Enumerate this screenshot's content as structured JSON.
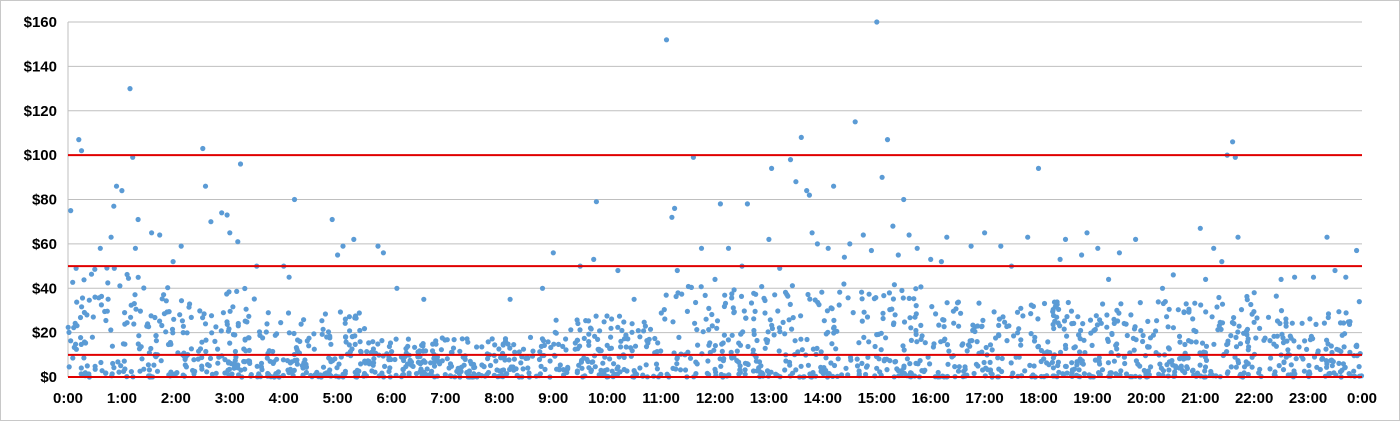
{
  "chart_data": {
    "type": "scatter",
    "title": "",
    "xlabel": "",
    "ylabel": "",
    "xlim": [
      0,
      24
    ],
    "ylim": [
      0,
      160
    ],
    "grid": true,
    "legend": "none",
    "x_tick_labels": [
      "0:00",
      "1:00",
      "2:00",
      "3:00",
      "4:00",
      "5:00",
      "6:00",
      "7:00",
      "8:00",
      "9:00",
      "10:00",
      "11:00",
      "12:00",
      "13:00",
      "14:00",
      "15:00",
      "16:00",
      "17:00",
      "18:00",
      "19:00",
      "20:00",
      "21:00",
      "22:00",
      "23:00",
      "0:00"
    ],
    "y_ticks": [
      0,
      20,
      40,
      60,
      80,
      100,
      120,
      140,
      160
    ],
    "y_tick_labels": [
      "$0",
      "$20",
      "$40",
      "$60",
      "$80",
      "$100",
      "$120",
      "$140",
      "$160"
    ],
    "reference_lines": [
      {
        "y": 0,
        "color": "#e00000"
      },
      {
        "y": 10,
        "color": "#e00000"
      },
      {
        "y": 50,
        "color": "#e00000"
      },
      {
        "y": 100,
        "color": "#e00000"
      }
    ],
    "colors": {
      "points": "#5b9bd5",
      "gridlines": "#bfbfbf",
      "reference": "#e00000"
    },
    "series": [
      {
        "outliers": [
          [
            0.05,
            75
          ],
          [
            0.2,
            107
          ],
          [
            0.25,
            102
          ],
          [
            0.15,
            49
          ],
          [
            0.35,
            28
          ],
          [
            0.5,
            36
          ],
          [
            0.6,
            58
          ],
          [
            0.8,
            63
          ],
          [
            0.85,
            77
          ],
          [
            0.9,
            86
          ],
          [
            1.0,
            84
          ],
          [
            1.15,
            130
          ],
          [
            1.2,
            99
          ],
          [
            1.3,
            71
          ],
          [
            1.25,
            58
          ],
          [
            1.55,
            65
          ],
          [
            1.7,
            64
          ],
          [
            1.95,
            52
          ],
          [
            2.1,
            59
          ],
          [
            2.5,
            103
          ],
          [
            2.55,
            86
          ],
          [
            2.65,
            70
          ],
          [
            2.85,
            74
          ],
          [
            2.95,
            73
          ],
          [
            3.0,
            65
          ],
          [
            3.15,
            61
          ],
          [
            3.2,
            96
          ],
          [
            3.5,
            50
          ],
          [
            4.0,
            50
          ],
          [
            4.1,
            45
          ],
          [
            4.2,
            80
          ],
          [
            4.9,
            71
          ],
          [
            5.0,
            55
          ],
          [
            5.1,
            59
          ],
          [
            5.3,
            62
          ],
          [
            5.75,
            59
          ],
          [
            5.85,
            56
          ],
          [
            6.1,
            40
          ],
          [
            6.6,
            35
          ],
          [
            8.2,
            35
          ],
          [
            8.8,
            40
          ],
          [
            9.0,
            56
          ],
          [
            9.5,
            50
          ],
          [
            9.75,
            53
          ],
          [
            9.8,
            79
          ],
          [
            10.2,
            48
          ],
          [
            10.5,
            35
          ],
          [
            11.1,
            152
          ],
          [
            11.2,
            72
          ],
          [
            11.25,
            76
          ],
          [
            11.3,
            48
          ],
          [
            11.6,
            99
          ],
          [
            11.75,
            58
          ],
          [
            12.0,
            44
          ],
          [
            12.1,
            78
          ],
          [
            12.25,
            58
          ],
          [
            12.5,
            50
          ],
          [
            12.6,
            78
          ],
          [
            13.0,
            62
          ],
          [
            13.05,
            94
          ],
          [
            13.2,
            49
          ],
          [
            13.4,
            98
          ],
          [
            13.5,
            88
          ],
          [
            13.6,
            108
          ],
          [
            13.7,
            84
          ],
          [
            13.75,
            82
          ],
          [
            13.8,
            65
          ],
          [
            13.9,
            60
          ],
          [
            14.1,
            58
          ],
          [
            14.2,
            86
          ],
          [
            14.4,
            54
          ],
          [
            14.5,
            60
          ],
          [
            14.6,
            115
          ],
          [
            14.75,
            64
          ],
          [
            14.9,
            57
          ],
          [
            15.0,
            160
          ],
          [
            15.1,
            90
          ],
          [
            15.2,
            107
          ],
          [
            15.3,
            68
          ],
          [
            15.4,
            55
          ],
          [
            15.5,
            80
          ],
          [
            15.6,
            64
          ],
          [
            15.75,
            58
          ],
          [
            16.0,
            53
          ],
          [
            16.2,
            52
          ],
          [
            16.3,
            63
          ],
          [
            16.75,
            59
          ],
          [
            17.0,
            65
          ],
          [
            17.3,
            59
          ],
          [
            17.5,
            50
          ],
          [
            17.8,
            63
          ],
          [
            18.0,
            94
          ],
          [
            18.4,
            53
          ],
          [
            18.5,
            62
          ],
          [
            18.8,
            55
          ],
          [
            18.9,
            65
          ],
          [
            19.1,
            58
          ],
          [
            19.3,
            44
          ],
          [
            19.5,
            56
          ],
          [
            19.8,
            62
          ],
          [
            20.3,
            40
          ],
          [
            20.5,
            46
          ],
          [
            21.0,
            67
          ],
          [
            21.1,
            44
          ],
          [
            21.25,
            58
          ],
          [
            21.4,
            52
          ],
          [
            21.5,
            100
          ],
          [
            21.6,
            106
          ],
          [
            21.65,
            99
          ],
          [
            21.7,
            63
          ],
          [
            22.0,
            38
          ],
          [
            22.5,
            44
          ],
          [
            22.75,
            45
          ],
          [
            23.1,
            45
          ],
          [
            23.35,
            63
          ],
          [
            23.5,
            48
          ],
          [
            23.7,
            45
          ],
          [
            23.9,
            57
          ],
          [
            23.95,
            34
          ]
        ]
      }
    ]
  }
}
